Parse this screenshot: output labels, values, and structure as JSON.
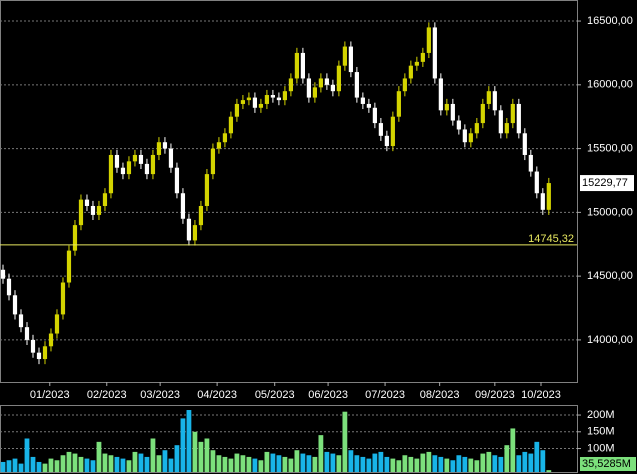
{
  "chart_data": [
    {
      "type": "candlestick",
      "open": [
        14550,
        14480,
        14350,
        14200,
        14100,
        14000,
        13900,
        13850,
        13950,
        14050,
        14200,
        14450,
        14700,
        14900,
        15100,
        15050,
        14980,
        15050,
        15150,
        15450,
        15350,
        15300,
        15400,
        15450,
        15380,
        15300,
        15450,
        15550,
        15500,
        15350,
        15150,
        14950,
        14780,
        14900,
        15050,
        15300,
        15500,
        15550,
        15620,
        15750,
        15850,
        15880,
        15900,
        15820,
        15850,
        15920,
        15900,
        15880,
        15950,
        16050,
        16250,
        16050,
        15900,
        15980,
        16050,
        16000,
        15950,
        16150,
        16300,
        16100,
        15900,
        15850,
        15820,
        15700,
        15600,
        15520,
        15750,
        15950,
        16050,
        16150,
        16180,
        16250,
        16450,
        16050,
        15800,
        15850,
        15720,
        15650,
        15550,
        15620,
        15700,
        15850,
        15950,
        15800,
        15620,
        15700,
        15850,
        15620,
        15450,
        15320,
        15150,
        15020
      ],
      "high": [
        14590,
        14520,
        14390,
        14240,
        14140,
        14040,
        13940,
        13990,
        14090,
        14240,
        14490,
        14740,
        14940,
        15140,
        15140,
        15090,
        15090,
        15190,
        15490,
        15490,
        15390,
        15440,
        15490,
        15490,
        15420,
        15490,
        15590,
        15590,
        15540,
        15390,
        15190,
        14990,
        14940,
        15090,
        15340,
        15540,
        15590,
        15660,
        15790,
        15890,
        15920,
        15940,
        15940,
        15890,
        15960,
        15960,
        15940,
        15990,
        16090,
        16290,
        16290,
        16090,
        16020,
        16090,
        16090,
        16040,
        16190,
        16340,
        16340,
        16140,
        15940,
        15890,
        15860,
        15740,
        15640,
        15790,
        15990,
        16090,
        16190,
        16220,
        16290,
        16490,
        16490,
        16090,
        15890,
        15890,
        15760,
        15690,
        15660,
        15740,
        15890,
        15990,
        15990,
        15840,
        15740,
        15890,
        15890,
        15660,
        15490,
        15360,
        15190,
        15270
      ],
      "low": [
        14440,
        14310,
        14160,
        14060,
        13960,
        13860,
        13810,
        13810,
        13910,
        14010,
        14160,
        14410,
        14660,
        14860,
        15010,
        14940,
        14940,
        15010,
        15110,
        15310,
        15260,
        15260,
        15360,
        15340,
        15260,
        15260,
        15410,
        15460,
        15310,
        15110,
        14910,
        14740,
        14740,
        14860,
        15010,
        15260,
        15460,
        15510,
        15580,
        15710,
        15810,
        15840,
        15780,
        15780,
        15810,
        15860,
        15840,
        15840,
        15910,
        16010,
        16010,
        15860,
        15860,
        15940,
        15960,
        15910,
        15910,
        16110,
        16060,
        15860,
        15810,
        15780,
        15660,
        15560,
        15480,
        15480,
        15710,
        15910,
        16010,
        16110,
        16140,
        16210,
        16010,
        15760,
        15760,
        15680,
        15610,
        15510,
        15510,
        15580,
        15660,
        15810,
        15760,
        15580,
        15580,
        15660,
        15580,
        15410,
        15280,
        15110,
        14980,
        14980
      ],
      "close": [
        14480,
        14350,
        14200,
        14100,
        14000,
        13900,
        13850,
        13950,
        14050,
        14200,
        14450,
        14700,
        14900,
        15100,
        15050,
        14980,
        15050,
        15150,
        15450,
        15350,
        15300,
        15400,
        15450,
        15380,
        15300,
        15450,
        15550,
        15500,
        15350,
        15150,
        14950,
        14780,
        14900,
        15050,
        15300,
        15500,
        15550,
        15620,
        15750,
        15850,
        15880,
        15900,
        15820,
        15850,
        15920,
        15900,
        15880,
        15950,
        16050,
        16250,
        16050,
        15900,
        15980,
        16050,
        16000,
        15950,
        16150,
        16300,
        16100,
        15900,
        15850,
        15820,
        15700,
        15600,
        15520,
        15750,
        15950,
        16050,
        16150,
        16180,
        16250,
        16450,
        16050,
        15800,
        15850,
        15720,
        15650,
        15550,
        15620,
        15700,
        15850,
        15950,
        15800,
        15620,
        15700,
        15850,
        15620,
        15450,
        15320,
        15150,
        15020,
        15229.77
      ],
      "up_color": "#d4d400",
      "down_color": "#ffffff",
      "ylim": [
        13670,
        16665
      ],
      "yticks": [
        {
          "value": 14000,
          "label": "14000,00"
        },
        {
          "value": 14500,
          "label": "14500,00"
        },
        {
          "value": 15000,
          "label": "15000,00"
        },
        {
          "value": 15500,
          "label": "15500,00"
        },
        {
          "value": 16000,
          "label": "16000,00"
        },
        {
          "value": 16500,
          "label": "16500,00"
        }
      ],
      "xlim": [
        -0.5,
        95.7
      ],
      "xticks": [
        {
          "value": 7.8,
          "label": "01/2023"
        },
        {
          "value": 17.3,
          "label": "02/2023"
        },
        {
          "value": 26.2,
          "label": "03/2023"
        },
        {
          "value": 35.7,
          "label": "04/2023"
        },
        {
          "value": 45.3,
          "label": "05/2023"
        },
        {
          "value": 54.2,
          "label": "06/2023"
        },
        {
          "value": 63.7,
          "label": "07/2023"
        },
        {
          "value": 72.8,
          "label": "08/2023"
        },
        {
          "value": 82,
          "label": "09/2023"
        },
        {
          "value": 89.7,
          "label": "10/2023"
        }
      ],
      "grid": true,
      "reference_line": {
        "value": 14745.32,
        "label": "14745,32",
        "color": "#e8e860"
      },
      "last_price": {
        "value": 15229.77,
        "label": "15229,77"
      }
    },
    {
      "type": "bar",
      "values": [
        60,
        65,
        70,
        55,
        130,
        75,
        60,
        55,
        70,
        65,
        80,
        90,
        85,
        75,
        70,
        65,
        120,
        85,
        80,
        75,
        70,
        65,
        90,
        85,
        75,
        130,
        80,
        95,
        70,
        110,
        190,
        215,
        150,
        120,
        130,
        95,
        80,
        75,
        70,
        85,
        80,
        75,
        70,
        65,
        90,
        85,
        80,
        75,
        70,
        95,
        85,
        80,
        75,
        140,
        90,
        85,
        80,
        210,
        95,
        80,
        75,
        70,
        85,
        90,
        75,
        70,
        65,
        80,
        75,
        70,
        85,
        90,
        80,
        75,
        70,
        65,
        80,
        75,
        70,
        65,
        85,
        90,
        80,
        75,
        110,
        160,
        80,
        90,
        85,
        120,
        95,
        35.5285
      ],
      "up_color": "#7ce07c",
      "down_color": "#18b4e8",
      "ylim": [
        30,
        227
      ],
      "yticks": [
        {
          "value": 100,
          "label": "100M"
        },
        {
          "value": 150,
          "label": "150M"
        },
        {
          "value": 200,
          "label": "200M"
        }
      ],
      "grid": true,
      "last_value": {
        "value": 35.5285,
        "label": "35,5285M"
      }
    }
  ]
}
